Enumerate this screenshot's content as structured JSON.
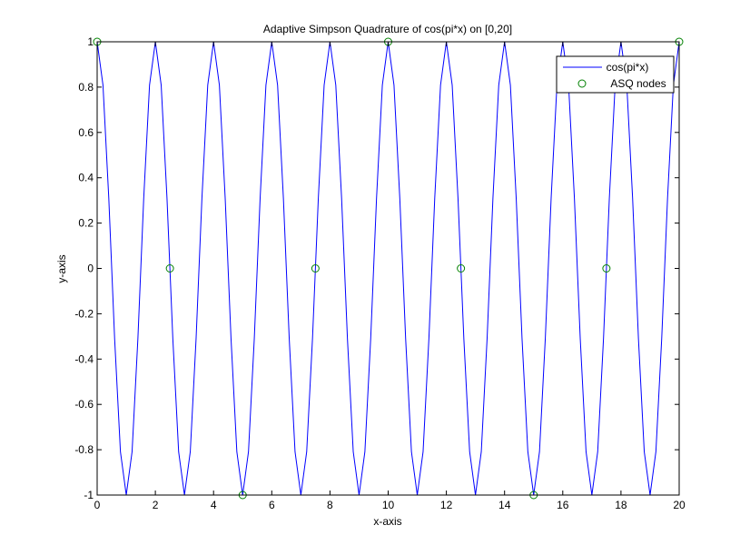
{
  "chart_data": {
    "type": "line",
    "title": "Adaptive Simpson Quadrature of cos(pi*x) on [0,20]",
    "xlabel": "x-axis",
    "ylabel": "y-axis",
    "xlim": [
      0,
      20
    ],
    "ylim": [
      -1,
      1
    ],
    "xticks": [
      0,
      2,
      4,
      6,
      8,
      10,
      12,
      14,
      16,
      18,
      20
    ],
    "yticks": [
      -1,
      -0.8,
      -0.6,
      -0.4,
      -0.2,
      0,
      0.2,
      0.4,
      0.6,
      0.8,
      1
    ],
    "xtick_labels": [
      "0",
      "2",
      "4",
      "6",
      "8",
      "10",
      "12",
      "14",
      "16",
      "18",
      "20"
    ],
    "ytick_labels": [
      "-1",
      "-0.8",
      "-0.6",
      "-0.4",
      "-0.2",
      "0",
      "0.2",
      "0.4",
      "0.6",
      "0.8",
      "1"
    ],
    "grid": false,
    "legend_position": "top-right",
    "series": [
      {
        "name": "cos(pi*x)",
        "style": "line",
        "color": "#0000ff",
        "function": "cos(pi*x)",
        "x_start": 0,
        "x_end": 20,
        "x_step": 0.2
      },
      {
        "name": "ASQ nodes",
        "style": "marker",
        "marker": "circle",
        "color": "#008000",
        "x": [
          0,
          2.5,
          5,
          7.5,
          10,
          12.5,
          15,
          17.5,
          20
        ],
        "y": [
          1,
          0,
          -1,
          0,
          1,
          0,
          -1,
          0,
          1
        ]
      }
    ]
  }
}
